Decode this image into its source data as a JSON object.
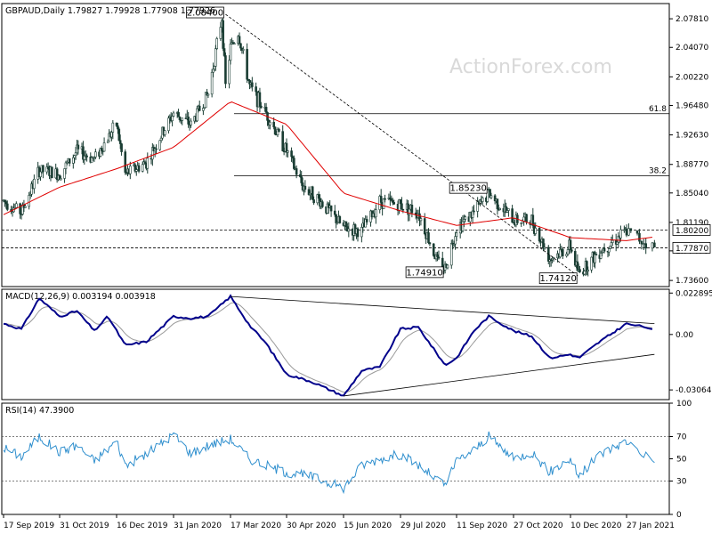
{
  "header": {
    "main": "GBPAUD,Daily  1.79827 1.79928 1.77908 1.77926",
    "macd": "MACD(12,26,9) 0.003194 0.003918",
    "rsi": "RSI(14) 47.3900"
  },
  "watermark": "ActionForex.com",
  "chart_data": [
    {
      "type": "candlestick",
      "panel": "price",
      "symbol": "GBPAUD",
      "timeframe": "Daily",
      "ohlc_last": {
        "open": 1.79827,
        "high": 1.79928,
        "low": 1.77908,
        "close": 1.77926
      },
      "ylim": [
        1.728,
        2.098
      ],
      "y_ticks": [
        "2.07810",
        "2.04070",
        "2.00220",
        "1.96480",
        "1.92630",
        "1.88770",
        "1.85040",
        "1.81190",
        "1.77470",
        "1.73600"
      ],
      "x_ticks": [
        "17 Sep 2019",
        "31 Oct 2019",
        "16 Dec 2019",
        "31 Jan 2020",
        "17 Mar 2020",
        "30 Apr 2020",
        "15 Jun 2020",
        "29 Jul 2020",
        "11 Sep 2020",
        "27 Oct 2020",
        "10 Dec 2020",
        "27 Jan 2021"
      ],
      "close_path": [
        {
          "d": "17 Sep 2019",
          "v": 1.84
        },
        {
          "d": "01 Oct 2019",
          "v": 1.825
        },
        {
          "d": "15 Oct 2019",
          "v": 1.88
        },
        {
          "d": "31 Oct 2019",
          "v": 1.875
        },
        {
          "d": "14 Nov 2019",
          "v": 1.905
        },
        {
          "d": "28 Nov 2019",
          "v": 1.895
        },
        {
          "d": "16 Dec 2019",
          "v": 1.94
        },
        {
          "d": "23 Dec 2019",
          "v": 1.875
        },
        {
          "d": "09 Jan 2020",
          "v": 1.89
        },
        {
          "d": "31 Jan 2020",
          "v": 1.955
        },
        {
          "d": "14 Feb 2020",
          "v": 1.94
        },
        {
          "d": "28 Feb 2020",
          "v": 1.98
        },
        {
          "d": "10 Mar 2020",
          "v": 2.08
        },
        {
          "d": "13 Mar 2020",
          "v": 1.99
        },
        {
          "d": "17 Mar 2020",
          "v": 2.04
        },
        {
          "d": "23 Mar 2020",
          "v": 2.06
        },
        {
          "d": "01 Apr 2020",
          "v": 1.99
        },
        {
          "d": "14 Apr 2020",
          "v": 1.955
        },
        {
          "d": "30 Apr 2020",
          "v": 1.905
        },
        {
          "d": "13 May 2020",
          "v": 1.86
        },
        {
          "d": "27 May 2020",
          "v": 1.84
        },
        {
          "d": "15 Jun 2020",
          "v": 1.805
        },
        {
          "d": "29 Jun 2020",
          "v": 1.8
        },
        {
          "d": "13 Jul 2020",
          "v": 1.84
        },
        {
          "d": "29 Jul 2020",
          "v": 1.835
        },
        {
          "d": "12 Aug 2020",
          "v": 1.825
        },
        {
          "d": "27 Aug 2020",
          "v": 1.76
        },
        {
          "d": "02 Sep 2020",
          "v": 1.752
        },
        {
          "d": "11 Sep 2020",
          "v": 1.805
        },
        {
          "d": "25 Sep 2020",
          "v": 1.825
        },
        {
          "d": "07 Oct 2020",
          "v": 1.85
        },
        {
          "d": "27 Oct 2020",
          "v": 1.815
        },
        {
          "d": "10 Nov 2020",
          "v": 1.815
        },
        {
          "d": "24 Nov 2020",
          "v": 1.765
        },
        {
          "d": "10 Dec 2020",
          "v": 1.78
        },
        {
          "d": "17 Dec 2020",
          "v": 1.745
        },
        {
          "d": "04 Jan 2021",
          "v": 1.775
        },
        {
          "d": "27 Jan 2021",
          "v": 1.8
        },
        {
          "d": "09 Feb 2021",
          "v": 1.779
        }
      ],
      "moving_average": [
        {
          "d": "17 Sep 2019",
          "v": 1.822
        },
        {
          "d": "31 Oct 2019",
          "v": 1.858
        },
        {
          "d": "16 Dec 2019",
          "v": 1.882
        },
        {
          "d": "31 Jan 2020",
          "v": 1.91
        },
        {
          "d": "17 Mar 2020",
          "v": 1.97
        },
        {
          "d": "30 Apr 2020",
          "v": 1.94
        },
        {
          "d": "15 Jun 2020",
          "v": 1.85
        },
        {
          "d": "29 Jul 2020",
          "v": 1.827
        },
        {
          "d": "11 Sep 2020",
          "v": 1.808
        },
        {
          "d": "27 Oct 2020",
          "v": 1.818
        },
        {
          "d": "10 Dec 2020",
          "v": 1.792
        },
        {
          "d": "27 Jan 2021",
          "v": 1.788
        },
        {
          "d": "09 Feb 2021",
          "v": 1.793
        }
      ],
      "trendline": {
        "from": {
          "d": "13 Mar 2020",
          "v": 2.084
        },
        "to": {
          "d": "17 Dec 2020",
          "v": 1.7412
        }
      },
      "fibonacci": [
        {
          "label": "61.8",
          "v": 1.954
        },
        {
          "label": "38.2",
          "v": 1.873
        }
      ],
      "levels": [
        {
          "v": 1.802
        },
        {
          "v": 1.7787
        }
      ],
      "annotations": [
        {
          "text": "2.08400",
          "d": "13 Mar 2020",
          "v": 2.084
        },
        {
          "text": "1.85230",
          "d": "07 Oct 2020",
          "v": 1.8523
        },
        {
          "text": "1.74910",
          "d": "02 Sep 2020",
          "v": 1.7491
        },
        {
          "text": "1.74120",
          "d": "17 Dec 2020",
          "v": 1.7412
        }
      ],
      "price_tags": [
        {
          "text": "1.80200",
          "v": 1.802,
          "bg": "#ffffff"
        },
        {
          "text": "1.77870",
          "v": 1.7787,
          "bg": "#ffffff"
        }
      ],
      "colors": {
        "candle": "#1a3d33",
        "ma": "#e00000",
        "trend": "#000000"
      }
    },
    {
      "type": "line",
      "panel": "macd",
      "ylim": [
        -0.036,
        0.025
      ],
      "y_ticks": [
        "0.022895",
        "0.00",
        "-0.030645"
      ],
      "macd": [
        {
          "d": "17 Sep 2019",
          "v": 0.006
        },
        {
          "d": "01 Oct 2019",
          "v": 0.003
        },
        {
          "d": "15 Oct 2019",
          "v": 0.02
        },
        {
          "d": "31 Oct 2019",
          "v": 0.01
        },
        {
          "d": "14 Nov 2019",
          "v": 0.013
        },
        {
          "d": "28 Nov 2019",
          "v": 0.002
        },
        {
          "d": "09 Dec 2019",
          "v": 0.01
        },
        {
          "d": "23 Dec 2019",
          "v": -0.006
        },
        {
          "d": "09 Jan 2020",
          "v": -0.004
        },
        {
          "d": "31 Jan 2020",
          "v": 0.01
        },
        {
          "d": "14 Feb 2020",
          "v": 0.009
        },
        {
          "d": "28 Feb 2020",
          "v": 0.01
        },
        {
          "d": "17 Mar 2020",
          "v": 0.021
        },
        {
          "d": "01 Apr 2020",
          "v": 0.005
        },
        {
          "d": "14 Apr 2020",
          "v": -0.005
        },
        {
          "d": "30 Apr 2020",
          "v": -0.022
        },
        {
          "d": "20 May 2020",
          "v": -0.026
        },
        {
          "d": "15 Jun 2020",
          "v": -0.034
        },
        {
          "d": "29 Jun 2020",
          "v": -0.02
        },
        {
          "d": "13 Jul 2020",
          "v": -0.018
        },
        {
          "d": "29 Jul 2020",
          "v": 0.003
        },
        {
          "d": "12 Aug 2020",
          "v": 0.004
        },
        {
          "d": "02 Sep 2020",
          "v": -0.017
        },
        {
          "d": "11 Sep 2020",
          "v": -0.013
        },
        {
          "d": "25 Sep 2020",
          "v": 0.002
        },
        {
          "d": "07 Oct 2020",
          "v": 0.01
        },
        {
          "d": "27 Oct 2020",
          "v": 0.002
        },
        {
          "d": "10 Nov 2020",
          "v": -0.001
        },
        {
          "d": "24 Nov 2020",
          "v": -0.013
        },
        {
          "d": "10 Dec 2020",
          "v": -0.011
        },
        {
          "d": "17 Dec 2020",
          "v": -0.013
        },
        {
          "d": "04 Jan 2021",
          "v": -0.004
        },
        {
          "d": "27 Jan 2021",
          "v": 0.006
        },
        {
          "d": "09 Feb 2021",
          "v": 0.003
        }
      ],
      "trendlines": [
        {
          "from": {
            "d": "17 Mar 2020",
            "v": 0.021
          },
          "to": {
            "d": "09 Feb 2021",
            "v": 0.006
          }
        },
        {
          "from": {
            "d": "15 Jun 2020",
            "v": -0.034
          },
          "to": {
            "d": "09 Feb 2021",
            "v": -0.011
          }
        }
      ],
      "colors": {
        "macd": "#00008b",
        "signal": "#9a9a9a",
        "trend": "#000000"
      }
    },
    {
      "type": "line",
      "panel": "rsi",
      "ylim": [
        0,
        100
      ],
      "y_ticks": [
        "100",
        "70",
        "50",
        "30",
        "0"
      ],
      "levels": [
        70,
        30
      ],
      "rsi": [
        {
          "d": "17 Sep 2019",
          "v": 60
        },
        {
          "d": "01 Oct 2019",
          "v": 52
        },
        {
          "d": "15 Oct 2019",
          "v": 70
        },
        {
          "d": "31 Oct 2019",
          "v": 56
        },
        {
          "d": "14 Nov 2019",
          "v": 62
        },
        {
          "d": "28 Nov 2019",
          "v": 48
        },
        {
          "d": "16 Dec 2019",
          "v": 66
        },
        {
          "d": "23 Dec 2019",
          "v": 44
        },
        {
          "d": "09 Jan 2020",
          "v": 54
        },
        {
          "d": "31 Jan 2020",
          "v": 72
        },
        {
          "d": "14 Feb 2020",
          "v": 55
        },
        {
          "d": "28 Feb 2020",
          "v": 62
        },
        {
          "d": "17 Mar 2020",
          "v": 68
        },
        {
          "d": "01 Apr 2020",
          "v": 50
        },
        {
          "d": "14 Apr 2020",
          "v": 44
        },
        {
          "d": "30 Apr 2020",
          "v": 38
        },
        {
          "d": "20 May 2020",
          "v": 34
        },
        {
          "d": "15 Jun 2020",
          "v": 24
        },
        {
          "d": "29 Jun 2020",
          "v": 44
        },
        {
          "d": "13 Jul 2020",
          "v": 50
        },
        {
          "d": "29 Jul 2020",
          "v": 54
        },
        {
          "d": "12 Aug 2020",
          "v": 44
        },
        {
          "d": "02 Sep 2020",
          "v": 26
        },
        {
          "d": "11 Sep 2020",
          "v": 48
        },
        {
          "d": "25 Sep 2020",
          "v": 58
        },
        {
          "d": "07 Oct 2020",
          "v": 70
        },
        {
          "d": "27 Oct 2020",
          "v": 50
        },
        {
          "d": "10 Nov 2020",
          "v": 56
        },
        {
          "d": "24 Nov 2020",
          "v": 38
        },
        {
          "d": "10 Dec 2020",
          "v": 50
        },
        {
          "d": "17 Dec 2020",
          "v": 34
        },
        {
          "d": "04 Jan 2021",
          "v": 54
        },
        {
          "d": "27 Jan 2021",
          "v": 66
        },
        {
          "d": "09 Feb 2021",
          "v": 47.39
        }
      ],
      "colors": {
        "rsi": "#2f8fce",
        "level": "#555555"
      }
    }
  ]
}
